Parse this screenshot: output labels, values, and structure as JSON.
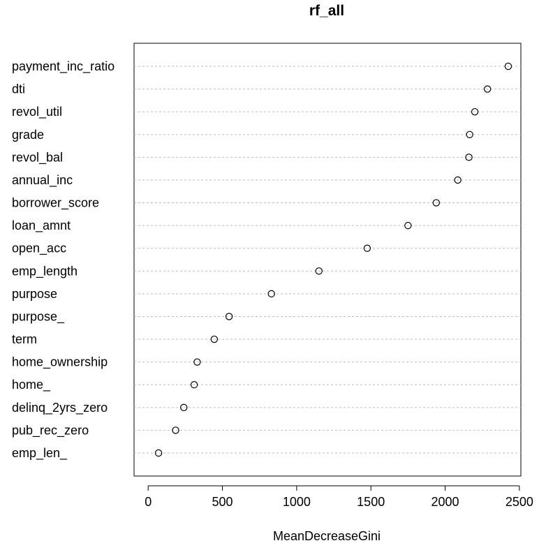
{
  "chart_data": {
    "type": "scatter",
    "title": "rf_all",
    "xlabel": "MeanDecreaseGini",
    "ylabel": "",
    "xlim": [
      -95,
      2510
    ],
    "xticks": [
      0,
      500,
      1000,
      1500,
      2000,
      2500
    ],
    "grid": "dotted horizontal guide lines per category",
    "categories": [
      "payment_inc_ratio",
      "dti",
      "revol_util",
      "grade",
      "revol_bal",
      "annual_inc",
      "borrower_score",
      "loan_amnt",
      "open_acc",
      "emp_length",
      "purpose",
      "purpose_",
      "term",
      "home_ownership",
      "home_",
      "delinq_2yrs_zero",
      "pub_rec_zero",
      "emp_len_"
    ],
    "values": [
      2425,
      2285,
      2200,
      2165,
      2160,
      2085,
      1940,
      1750,
      1475,
      1150,
      830,
      545,
      445,
      330,
      310,
      240,
      185,
      70
    ]
  }
}
